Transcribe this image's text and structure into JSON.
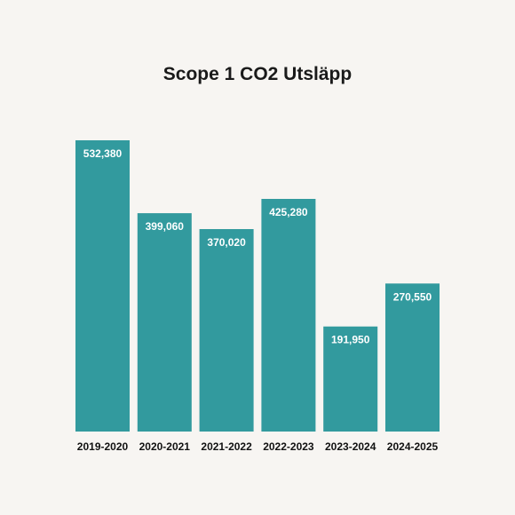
{
  "chart_data": {
    "type": "bar",
    "title": "Scope 1 CO2 Utsläpp",
    "xlabel": "",
    "ylabel": "",
    "categories": [
      "2019-2020",
      "2020-2021",
      "2021-2022",
      "2022-2023",
      "2023-2024",
      "2024-2025"
    ],
    "values": [
      532380,
      399060,
      370020,
      425280,
      191950,
      270550
    ],
    "data_labels": [
      "532,380",
      "399,060",
      "370,020",
      "425,280",
      "191,950",
      "270,550"
    ],
    "ylim": [
      0,
      532380
    ],
    "grid": false,
    "legend": "none",
    "colors": {
      "bar": "#329a9e",
      "background": "#f7f5f2"
    }
  }
}
